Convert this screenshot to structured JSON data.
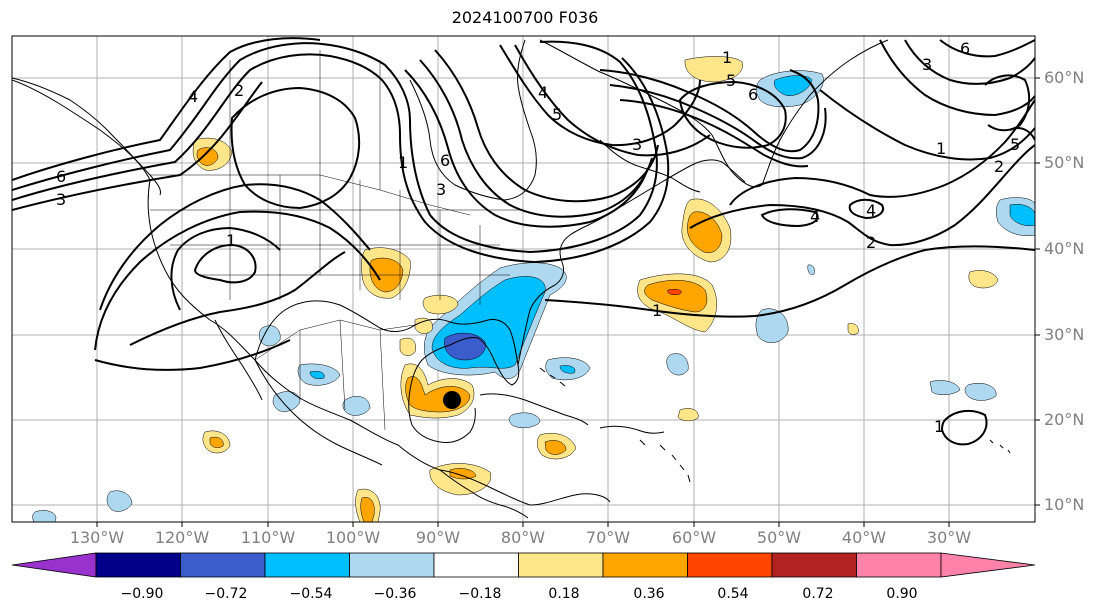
{
  "title": "2024100700 F036",
  "lat_labels": [
    "60°N",
    "50°N",
    "40°N",
    "30°N",
    "20°N",
    "10°N"
  ],
  "lon_labels": [
    "130°W",
    "120°W",
    "110°W",
    "100°W",
    "90°W",
    "80°W",
    "70°W",
    "60°W",
    "50°W",
    "40°W",
    "30°W"
  ],
  "colorbar": {
    "ticks": [
      "−0.90",
      "−0.72",
      "−0.54",
      "−0.36",
      "−0.18",
      "0.18",
      "0.36",
      "0.54",
      "0.72",
      "0.90"
    ],
    "colors": [
      "#9932cc",
      "#00008b",
      "#3a5ccc",
      "#00bfff",
      "#add8f0",
      "#ffffff",
      "#ffe68a",
      "#ffa500",
      "#ff4500",
      "#b22222",
      "#ff82ab"
    ]
  },
  "contour_labels": [
    "6",
    "3",
    "4",
    "2",
    "1",
    "1",
    "6",
    "3",
    "5",
    "4",
    "6",
    "5",
    "3",
    "4",
    "1",
    "2",
    "5",
    "1",
    "6",
    "3",
    "2",
    "4",
    "1",
    "1"
  ],
  "marker": "storm-center"
}
